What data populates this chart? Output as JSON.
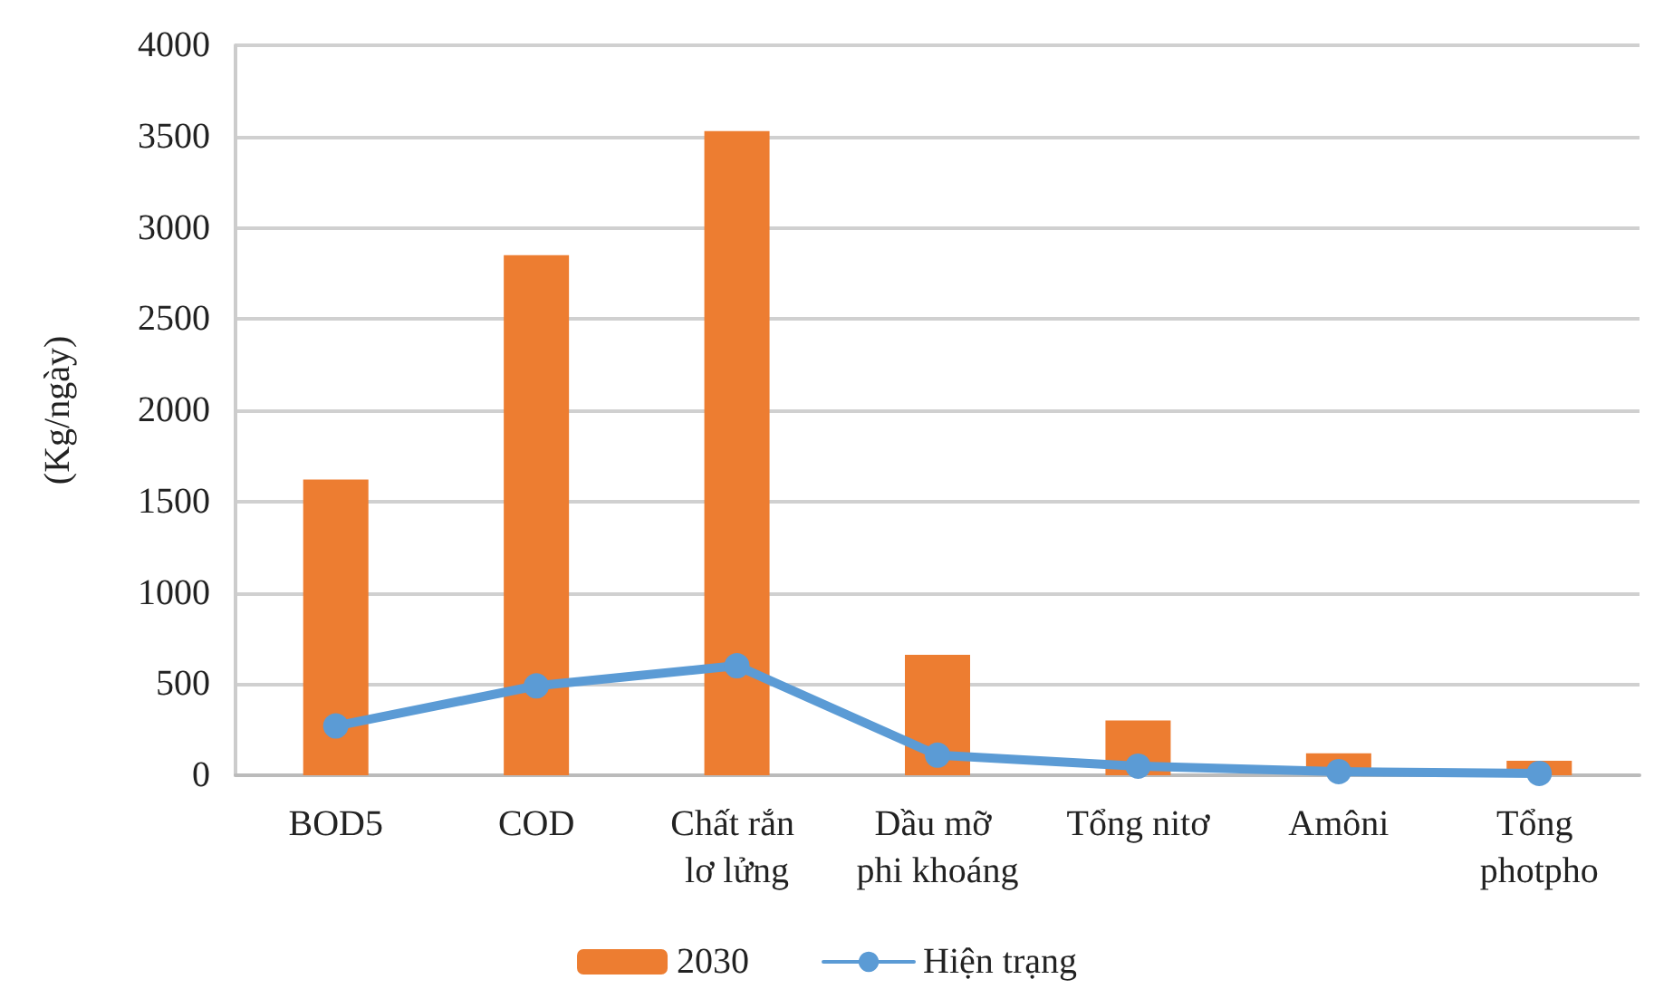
{
  "chart_data": {
    "type": "bar",
    "ylabel": "(Kg/ngày)",
    "categories": [
      "BOD5",
      "COD",
      "Chất rắn lơ lửng",
      "Dầu mỡ phi khoáng",
      "Tổng nitơ",
      "Amôni",
      "Tổng photpho"
    ],
    "series": [
      {
        "name": "2030",
        "color": "#ed7d31",
        "values": [
          1620,
          2850,
          3530,
          660,
          300,
          120,
          80
        ]
      },
      {
        "name": "Hiện trạng",
        "type": "line",
        "color": "#5b9bd5",
        "values": [
          270,
          490,
          600,
          110,
          50,
          20,
          10
        ]
      }
    ],
    "ylim": [
      0,
      4000
    ],
    "yticks": [
      0,
      500,
      1000,
      1500,
      2000,
      2500,
      3000,
      3500,
      4000
    ],
    "grid": "y",
    "legend": "bottom",
    "marker": "circle",
    "line_style": "solid"
  }
}
